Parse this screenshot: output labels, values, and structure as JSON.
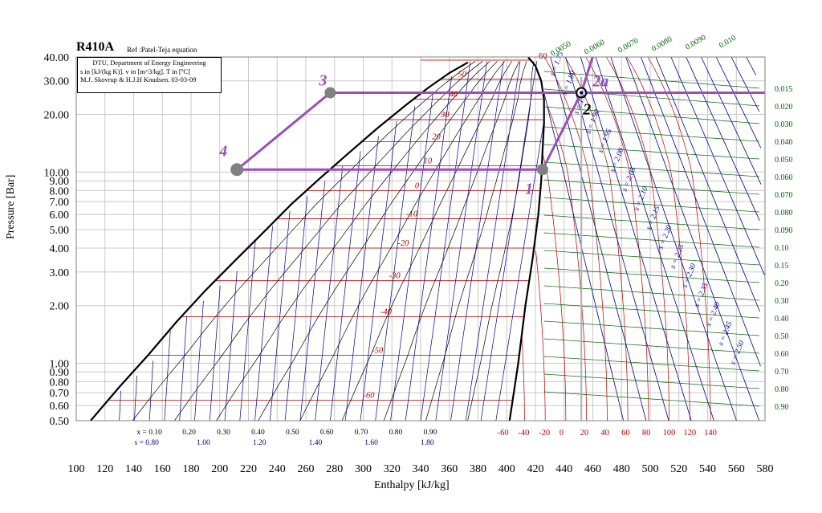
{
  "header": {
    "title": "R410A",
    "subtitle": "Ref :Patel-Teja equation"
  },
  "infobox": {
    "line1": "DTU, Department of Energy Engineering",
    "line2": "s in [kJ/(kg K)]. v in [m^3/kg]. T in [ºC]",
    "line3": "M.J. Skovrup & H.J.H Knudsen. 03-03-09"
  },
  "chart_data": {
    "type": "line",
    "title": "R410A",
    "xlabel": "Enthalpy [kJ/kg]",
    "ylabel": "Pressure [Bar]",
    "xlim": [
      100,
      580
    ],
    "ylim": [
      0.5,
      40
    ],
    "yscale": "log",
    "grid": true,
    "x_ticks": [
      100,
      120,
      140,
      160,
      180,
      200,
      220,
      240,
      260,
      280,
      300,
      320,
      340,
      360,
      380,
      400,
      420,
      440,
      460,
      480,
      500,
      520,
      540,
      560,
      580
    ],
    "y_ticks": [
      {
        "value": 40,
        "label": "40.00"
      },
      {
        "value": 30,
        "label": "30.00"
      },
      {
        "value": 20,
        "label": "20.00"
      },
      {
        "value": 10,
        "label": "10.00"
      },
      {
        "value": 9,
        "label": "9.00"
      },
      {
        "value": 8,
        "label": "8.00"
      },
      {
        "value": 7,
        "label": "7.00"
      },
      {
        "value": 6,
        "label": "6.00"
      },
      {
        "value": 5,
        "label": "5.00"
      },
      {
        "value": 4,
        "label": "4.00"
      },
      {
        "value": 3,
        "label": "3.00"
      },
      {
        "value": 2,
        "label": "2.00"
      },
      {
        "value": 1,
        "label": "1.00"
      },
      {
        "value": 0.9,
        "label": "0.90"
      },
      {
        "value": 0.8,
        "label": "0.80"
      },
      {
        "value": 0.7,
        "label": "0.70"
      },
      {
        "value": 0.6,
        "label": "0.60"
      },
      {
        "value": 0.5,
        "label": "0.50"
      }
    ],
    "saturation_liquid": [
      [
        110,
        0.5
      ],
      [
        130,
        0.75
      ],
      [
        150,
        1.1
      ],
      [
        170,
        1.65
      ],
      [
        190,
        2.4
      ],
      [
        210,
        3.4
      ],
      [
        230,
        4.8
      ],
      [
        250,
        6.8
      ],
      [
        270,
        9.3
      ],
      [
        290,
        12.6
      ],
      [
        310,
        17.0
      ],
      [
        330,
        22.5
      ],
      [
        345,
        27.5
      ],
      [
        360,
        33.0
      ],
      [
        373,
        37.5
      ]
    ],
    "saturation_vapor": [
      [
        402,
        0.5
      ],
      [
        408,
        1.0
      ],
      [
        413,
        2.0
      ],
      [
        418,
        3.5
      ],
      [
        422,
        6.0
      ],
      [
        424,
        9.0
      ],
      [
        425,
        13.0
      ],
      [
        426,
        18.0
      ],
      [
        426,
        24.0
      ],
      [
        424,
        30.0
      ],
      [
        420,
        36.0
      ],
      [
        415,
        39.8
      ]
    ],
    "isotherms_2phase": [
      -60,
      -50,
      -40,
      -30,
      -20,
      -10,
      0,
      10,
      20,
      30,
      40,
      50
    ],
    "isotherm_labels_superheat": [
      -60,
      -40,
      -20,
      0,
      20,
      40,
      60,
      80,
      100,
      120,
      140
    ],
    "isotherm_top_label": "60",
    "quality_labels": [
      "x = 0.10",
      "0.20",
      "0.30",
      "0.40",
      "0.50",
      "0.60",
      "0.70",
      "0.80",
      "0.90"
    ],
    "quality_values": [
      0.1,
      0.2,
      0.3,
      0.4,
      0.5,
      0.6,
      0.7,
      0.8,
      0.9
    ],
    "entropy_liquid_labels": [
      "s = 0.80",
      "1.00",
      "1.20",
      "1.40",
      "1.60",
      "1.80"
    ],
    "entropy_liquid_values": [
      0.8,
      1.0,
      1.2,
      1.4,
      1.6,
      1.8
    ],
    "entropy_vapor_labels": [
      "s = 1.75",
      "s = 1.80",
      "s = 1.85",
      "s = 1.90",
      "s = 1.95",
      "s = 2.00",
      "s = 2.05",
      "s = 2.10",
      "s = 2.15",
      "s = 2.20",
      "s = 2.25",
      "s = 2.30",
      "s = 2.35",
      "s = 2.40",
      "s = 2.45",
      "s = 2.50"
    ],
    "volume_top_labels": [
      "0.0050",
      "0.0060",
      "0.0070",
      "0.0080",
      "0.0090",
      "0.010"
    ],
    "volume_right_labels": [
      "0.015",
      "0.020",
      "0.030",
      "0.040",
      "0.050",
      "0.060",
      "0.070",
      "0.080",
      "0.090",
      "0.10",
      "0.15",
      "0.20",
      "0.30",
      "0.40",
      "0.50",
      "0.60",
      "0.70",
      "0.80",
      "0.90"
    ],
    "volume_values": [
      0.015,
      0.02,
      0.03,
      0.04,
      0.05,
      0.06,
      0.07,
      0.08,
      0.09,
      0.1,
      0.15,
      0.2,
      0.3,
      0.4,
      0.5,
      0.6,
      0.7,
      0.8,
      0.9
    ],
    "cycle": {
      "high_pressure": 26,
      "low_pressure": 10.3,
      "points": [
        {
          "label": "1",
          "h": 425,
          "p": 10.3
        },
        {
          "label": "2",
          "h": 452,
          "p": 26
        },
        {
          "label": "2a",
          "h": 452,
          "p": 26
        },
        {
          "label": "3",
          "h": 277,
          "p": 26
        },
        {
          "label": "4",
          "h": 212,
          "p": 10.3
        }
      ]
    }
  },
  "colors": {
    "grid": "#c8c8c8",
    "saturation": "#000000",
    "isotherm": "#b00000",
    "isentrope": "#000080",
    "isochore": "#006400",
    "quality": "#000000",
    "cycle": "#9b4fb5",
    "point": "#808080"
  },
  "axes": {
    "xlabel": "Enthalpy [kJ/kg]",
    "ylabel": "Pressure [Bar]"
  }
}
